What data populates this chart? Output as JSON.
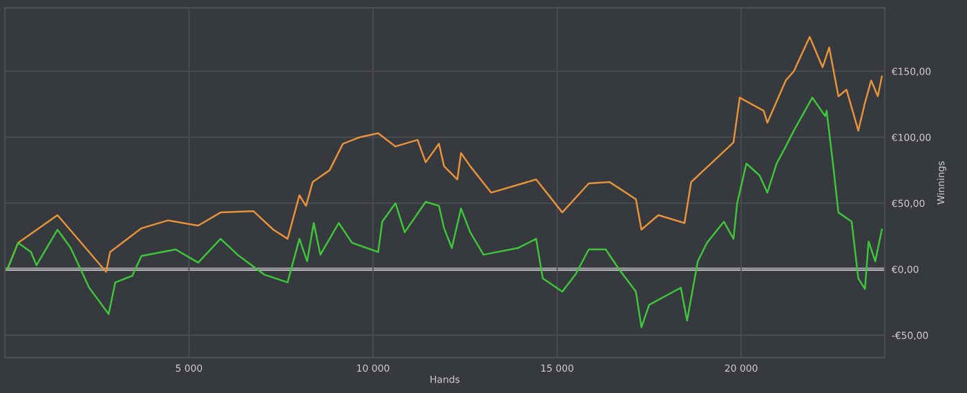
{
  "chart_data": {
    "type": "line",
    "xlabel": "Hands",
    "ylabel": "Winnings",
    "xlim": [
      0,
      23900
    ],
    "ylim": [
      -67,
      198
    ],
    "xticks": [
      {
        "value": 5000,
        "label": "5 000"
      },
      {
        "value": 10000,
        "label": "10 000"
      },
      {
        "value": 15000,
        "label": "15 000"
      },
      {
        "value": 20000,
        "label": "20 000"
      }
    ],
    "yticks": [
      {
        "value": -50,
        "label": "-€50,00"
      },
      {
        "value": 0,
        "label": "€0,00"
      },
      {
        "value": 50,
        "label": "€50,00"
      },
      {
        "value": 100,
        "label": "€100,00"
      },
      {
        "value": 150,
        "label": "€150,00"
      }
    ],
    "grid": true,
    "line_style": "solid",
    "ref_lines": [
      {
        "axis": "y",
        "value": 0,
        "label": null,
        "color": "#ffffff"
      }
    ],
    "series": [
      {
        "color": "#e8923a",
        "x": [
          70,
          360,
          1430,
          2750,
          2860,
          3710,
          4430,
          5250,
          5860,
          6750,
          7290,
          7680,
          8000,
          8180,
          8360,
          8820,
          9180,
          9640,
          10140,
          10610,
          11210,
          11430,
          11790,
          11930,
          12290,
          12390,
          12640,
          13210,
          14430,
          15140,
          15860,
          16430,
          17140,
          17290,
          17750,
          18460,
          18640,
          19290,
          19790,
          19960,
          20610,
          20710,
          21210,
          21430,
          21860,
          22210,
          22390,
          22640,
          22860,
          23180,
          23360,
          23530,
          23710,
          23820
        ],
        "values": [
          0,
          20,
          41,
          -2,
          13,
          31,
          37,
          33,
          43,
          44,
          30,
          23,
          56,
          48,
          66,
          75,
          95,
          100,
          103,
          93,
          98,
          81,
          95,
          78,
          68,
          88,
          78,
          58,
          68,
          43,
          65,
          66,
          53,
          30,
          41,
          35,
          66,
          83,
          96,
          130,
          120,
          111,
          143,
          150,
          176,
          153,
          168,
          131,
          136,
          105,
          126,
          143,
          131,
          146
        ]
      },
      {
        "color": "#3ec63a",
        "x": [
          70,
          360,
          710,
          860,
          1430,
          1790,
          2290,
          2820,
          3000,
          3460,
          3710,
          4640,
          5250,
          5860,
          6320,
          7040,
          7680,
          8000,
          8210,
          8390,
          8570,
          9070,
          9430,
          10140,
          10250,
          10610,
          10860,
          11430,
          11790,
          11930,
          12140,
          12390,
          12640,
          13000,
          13930,
          14430,
          14610,
          15140,
          15500,
          15860,
          16320,
          16680,
          17140,
          17290,
          17500,
          18360,
          18530,
          18820,
          19070,
          19530,
          19790,
          19890,
          20140,
          20500,
          20710,
          20960,
          21210,
          21430,
          21930,
          22280,
          22320,
          22500,
          22640,
          23000,
          23180,
          23360,
          23460,
          23640,
          23820
        ],
        "values": [
          0,
          20,
          13,
          3,
          30,
          16,
          -14,
          -34,
          -10,
          -5,
          10,
          15,
          5,
          23,
          11,
          -4,
          -10,
          23,
          6,
          35,
          11,
          35,
          20,
          13,
          36,
          50,
          28,
          51,
          48,
          31,
          16,
          46,
          28,
          11,
          16,
          23,
          -7,
          -17,
          -4,
          15,
          15,
          0,
          -17,
          -44,
          -27,
          -14,
          -39,
          6,
          20,
          36,
          23,
          50,
          80,
          71,
          58,
          80,
          93,
          105,
          130,
          116,
          120,
          78,
          43,
          36,
          -7,
          -15,
          21,
          6,
          30
        ]
      }
    ]
  }
}
